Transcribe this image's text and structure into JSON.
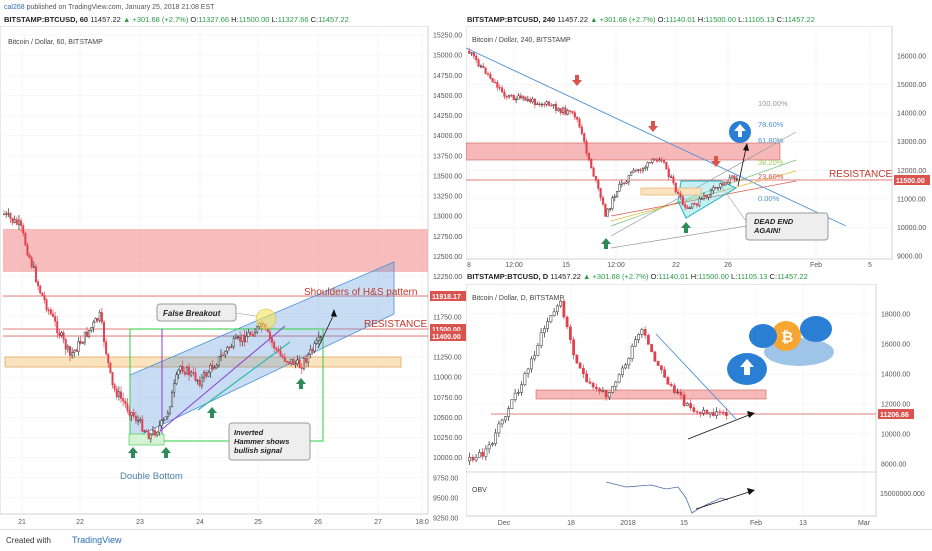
{
  "header": {
    "user": "cal268",
    "published": "published on TradingView.com, January 25, 2018 21:08 EST"
  },
  "footer": {
    "created": "Created with",
    "brand": "TradingView"
  },
  "colors": {
    "up": "#2d2d2d",
    "down": "#e0414f",
    "resistance": "#d9534f",
    "zone": "#f4a7a7",
    "trend": "#4a90d9",
    "obv": "#4a6fa5"
  },
  "chart_data": [
    {
      "type": "candlestick",
      "symbol": "BITSTAMP:BTCUSD, 60",
      "last": "11457.22",
      "change": "+301.68 (+2.7%)",
      "ohlc": {
        "O": "11327.66",
        "H": "11500.00",
        "L": "11327.66",
        "C": "11457.22"
      },
      "title": "Bitcoin / Dollar, 60, BITSTAMP",
      "yticks": [
        "15250.00",
        "15000.00",
        "14750.00",
        "14500.00",
        "14250.00",
        "14000.00",
        "13750.00",
        "13500.00",
        "13250.00",
        "13000.00",
        "12750.00",
        "12500.00",
        "12250.00",
        "12000.00",
        "11750.00",
        "11500.00",
        "11250.00",
        "11000.00",
        "10750.00",
        "10500.00",
        "10250.00",
        "10000.00",
        "9750.00",
        "9500.00",
        "9250.00"
      ],
      "xticks": [
        "21",
        "22",
        "23",
        "24",
        "25",
        "26",
        "27",
        "18:0"
      ],
      "price_labels": [
        {
          "text": "11918.17",
          "color": "#d9534f"
        },
        {
          "text": "11500.00",
          "color": "#d9534f"
        },
        {
          "text": "11400.00",
          "color": "#d9534f"
        }
      ],
      "annotations": [
        "False Breakout",
        "Shoulders of H&S pattern",
        "RESISTANCE",
        "Inverted Hammer shows bullish signal",
        "Double Bottom"
      ],
      "ylim": [
        9150,
        15300
      ]
    },
    {
      "type": "candlestick",
      "symbol": "BITSTAMP:BTCUSD, 240",
      "last": "11457.22",
      "change": "+301.68 (+2.7%)",
      "ohlc": {
        "O": "11140.01",
        "H": "11500.00",
        "L": "11105.13",
        "C": "11457.22"
      },
      "title": "Bitcoin / Dollar, 240, BITSTAMP",
      "yticks": [
        "16000.00",
        "15000.00",
        "14000.00",
        "13000.00",
        "12000.00",
        "11000.00",
        "10000.00",
        "9000.00"
      ],
      "xticks": [
        "8",
        "12:00",
        "15",
        "12:00",
        "22",
        "26",
        "Feb",
        "5"
      ],
      "price_labels": [
        {
          "text": "11500.00",
          "color": "#d9534f"
        }
      ],
      "fib_levels": [
        "100.00%",
        "78.60%",
        "61.80%",
        "38.20%",
        "23.60%",
        "0.00%"
      ],
      "annotations": [
        "RESISTANCE",
        "DEAD END AGAIN!"
      ],
      "ylim": [
        8500,
        17000
      ]
    },
    {
      "type": "candlestick",
      "symbol": "BITSTAMP:BTCUSD, D",
      "last": "11457.22",
      "change": "+301.68 (+2.7%)",
      "ohlc": {
        "O": "11140.01",
        "H": "11500.00",
        "L": "11105.13",
        "C": "11457.22"
      },
      "title": "Bitcoin / Dollar, D, BITSTAMP",
      "yticks": [
        "18000.00",
        "16000.00",
        "14000.00",
        "12000.00",
        "10000.00",
        "8000.00"
      ],
      "xticks": [
        "Dec",
        "18",
        "2018",
        "15",
        "Feb",
        "13",
        "Mar"
      ],
      "price_labels": [
        {
          "text": "11206.86",
          "color": "#d9534f"
        }
      ],
      "obv_label": "OBV",
      "obv_tick": "15000000.000",
      "ylim": [
        7000,
        20000
      ]
    }
  ]
}
